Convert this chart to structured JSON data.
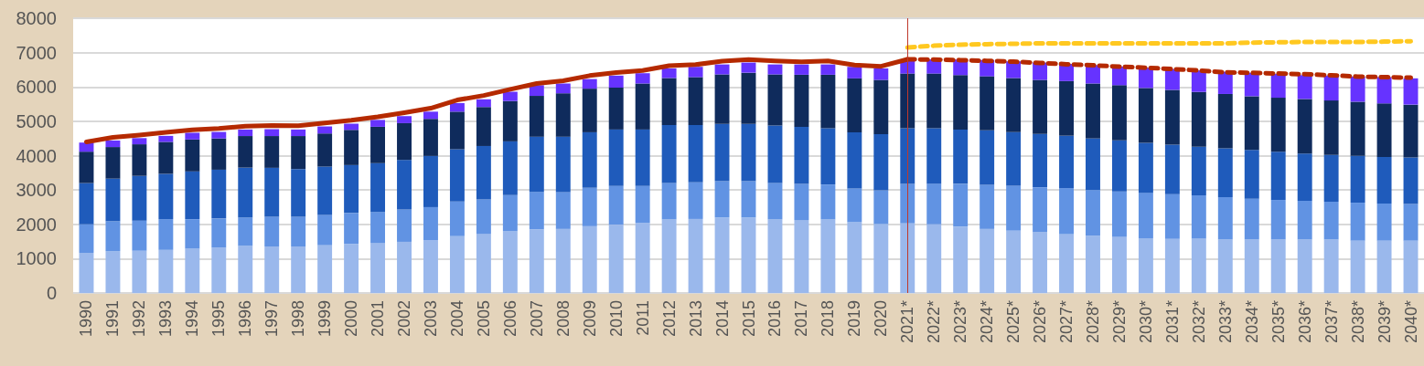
{
  "chart_data": {
    "type": "bar",
    "stacked": true,
    "grid": "y",
    "marker": "none",
    "categories": [
      "1990",
      "1991",
      "1992",
      "1993",
      "1994",
      "1995",
      "1996",
      "1997",
      "1998",
      "1999",
      "2000",
      "2001",
      "2002",
      "2003",
      "2004",
      "2005",
      "2006",
      "2007",
      "2008",
      "2009",
      "2010",
      "2011",
      "2012",
      "2013",
      "2014",
      "2015",
      "2016",
      "2017",
      "2018",
      "2019",
      "2020",
      "2021*",
      "2022*",
      "2023*",
      "2024*",
      "2025*",
      "2026*",
      "2027*",
      "2028*",
      "2029*",
      "2030*",
      "2031*",
      "2032*",
      "2033*",
      "2034*",
      "2035*",
      "2036*",
      "2037*",
      "2038*",
      "2039*",
      "2040*"
    ],
    "ylim": [
      0,
      8000
    ],
    "yticks": [
      0,
      1000,
      2000,
      3000,
      4000,
      5000,
      6000,
      7000,
      8000
    ],
    "series": [
      {
        "color": "#9ab8ec",
        "values": [
          1170,
          1220,
          1230,
          1255,
          1290,
          1320,
          1370,
          1355,
          1355,
          1390,
          1425,
          1460,
          1490,
          1540,
          1655,
          1725,
          1795,
          1850,
          1865,
          1945,
          1990,
          2035,
          2145,
          2155,
          2200,
          2200,
          2145,
          2125,
          2145,
          2065,
          2010,
          2030,
          2000,
          1930,
          1865,
          1815,
          1780,
          1710,
          1670,
          1630,
          1595,
          1575,
          1585,
          1560,
          1560,
          1560,
          1560,
          1560,
          1525,
          1525,
          1525
        ]
      },
      {
        "color": "#6193e3",
        "values": [
          830,
          870,
          875,
          895,
          860,
          850,
          830,
          865,
          865,
          885,
          905,
          900,
          940,
          960,
          1010,
          1000,
          1055,
          1095,
          1075,
          1115,
          1125,
          1080,
          1060,
          1065,
          1055,
          1055,
          1060,
          1050,
          1015,
          980,
          980,
          1145,
          1185,
          1250,
          1285,
          1310,
          1300,
          1345,
          1330,
          1330,
          1325,
          1305,
          1260,
          1230,
          1185,
          1150,
          1125,
          1100,
          1105,
          1080,
          1065
        ]
      },
      {
        "color": "#1f5bbb",
        "values": [
          1200,
          1240,
          1305,
          1320,
          1390,
          1420,
          1450,
          1425,
          1390,
          1405,
          1395,
          1420,
          1445,
          1490,
          1520,
          1555,
          1565,
          1605,
          1610,
          1620,
          1645,
          1645,
          1685,
          1670,
          1670,
          1670,
          1675,
          1660,
          1640,
          1635,
          1635,
          1620,
          1615,
          1580,
          1585,
          1560,
          1550,
          1525,
          1500,
          1485,
          1455,
          1440,
          1415,
          1420,
          1420,
          1400,
          1375,
          1360,
          1365,
          1355,
          1355
        ]
      },
      {
        "color": "#0f2b5c",
        "values": [
          915,
          920,
          920,
          930,
          930,
          910,
          920,
          925,
          960,
          965,
          1025,
          1060,
          1070,
          1080,
          1095,
          1135,
          1175,
          1190,
          1265,
          1270,
          1220,
          1340,
          1370,
          1395,
          1440,
          1490,
          1485,
          1520,
          1555,
          1570,
          1580,
          1595,
          1590,
          1585,
          1575,
          1575,
          1575,
          1590,
          1600,
          1605,
          1595,
          1595,
          1595,
          1585,
          1565,
          1575,
          1590,
          1585,
          1575,
          1560,
          1540
        ]
      },
      {
        "color": "#6633ff",
        "values": [
          265,
          190,
          180,
          175,
          195,
          190,
          190,
          200,
          190,
          205,
          180,
          200,
          205,
          210,
          250,
          225,
          270,
          310,
          285,
          280,
          350,
          300,
          280,
          300,
          290,
          295,
          290,
          300,
          300,
          335,
          335,
          400,
          415,
          455,
          475,
          485,
          505,
          500,
          535,
          545,
          590,
          605,
          625,
          650,
          680,
          695,
          695,
          725,
          730,
          765,
          765
        ]
      },
      {
        "type": "line",
        "color": "#b52a00",
        "line_style": "solid",
        "values": [
          4400,
          4530,
          4600,
          4680,
          4750,
          4790,
          4860,
          4880,
          4870,
          4950,
          5030,
          5130,
          5250,
          5380,
          5620,
          5750,
          5930,
          6100,
          6180,
          6330,
          6420,
          6480,
          6620,
          6650,
          6750,
          6800,
          6760,
          6730,
          6760,
          6640,
          6600,
          6805,
          null,
          null,
          null,
          null,
          null,
          null,
          null,
          null,
          null,
          null,
          null,
          null,
          null,
          null,
          null,
          null,
          null,
          null,
          null
        ]
      },
      {
        "type": "line",
        "color": "#b52a00",
        "line_style": "dashed",
        "values": [
          null,
          null,
          null,
          null,
          null,
          null,
          null,
          null,
          null,
          null,
          null,
          null,
          null,
          null,
          null,
          null,
          null,
          null,
          null,
          null,
          null,
          null,
          null,
          null,
          null,
          null,
          null,
          null,
          null,
          null,
          null,
          6805,
          6795,
          6780,
          6760,
          6735,
          6700,
          6660,
          6630,
          6590,
          6560,
          6520,
          6480,
          6425,
          6410,
          6390,
          6370,
          6340,
          6300,
          6285,
          6270
        ]
      },
      {
        "type": "line",
        "color": "#ffc820",
        "line_style": "dashed",
        "values": [
          null,
          null,
          null,
          null,
          null,
          null,
          null,
          null,
          null,
          null,
          null,
          null,
          null,
          null,
          null,
          null,
          null,
          null,
          null,
          null,
          null,
          null,
          null,
          null,
          null,
          null,
          null,
          null,
          null,
          null,
          null,
          7150,
          7200,
          7230,
          7245,
          7255,
          7270,
          7270,
          7270,
          7270,
          7270,
          7270,
          7270,
          7270,
          7290,
          7300,
          7310,
          7310,
          7310,
          7320,
          7330
        ]
      }
    ],
    "ref_lines": [
      {
        "axis": "x",
        "value": "2021*",
        "color": "#c0392b"
      }
    ]
  }
}
